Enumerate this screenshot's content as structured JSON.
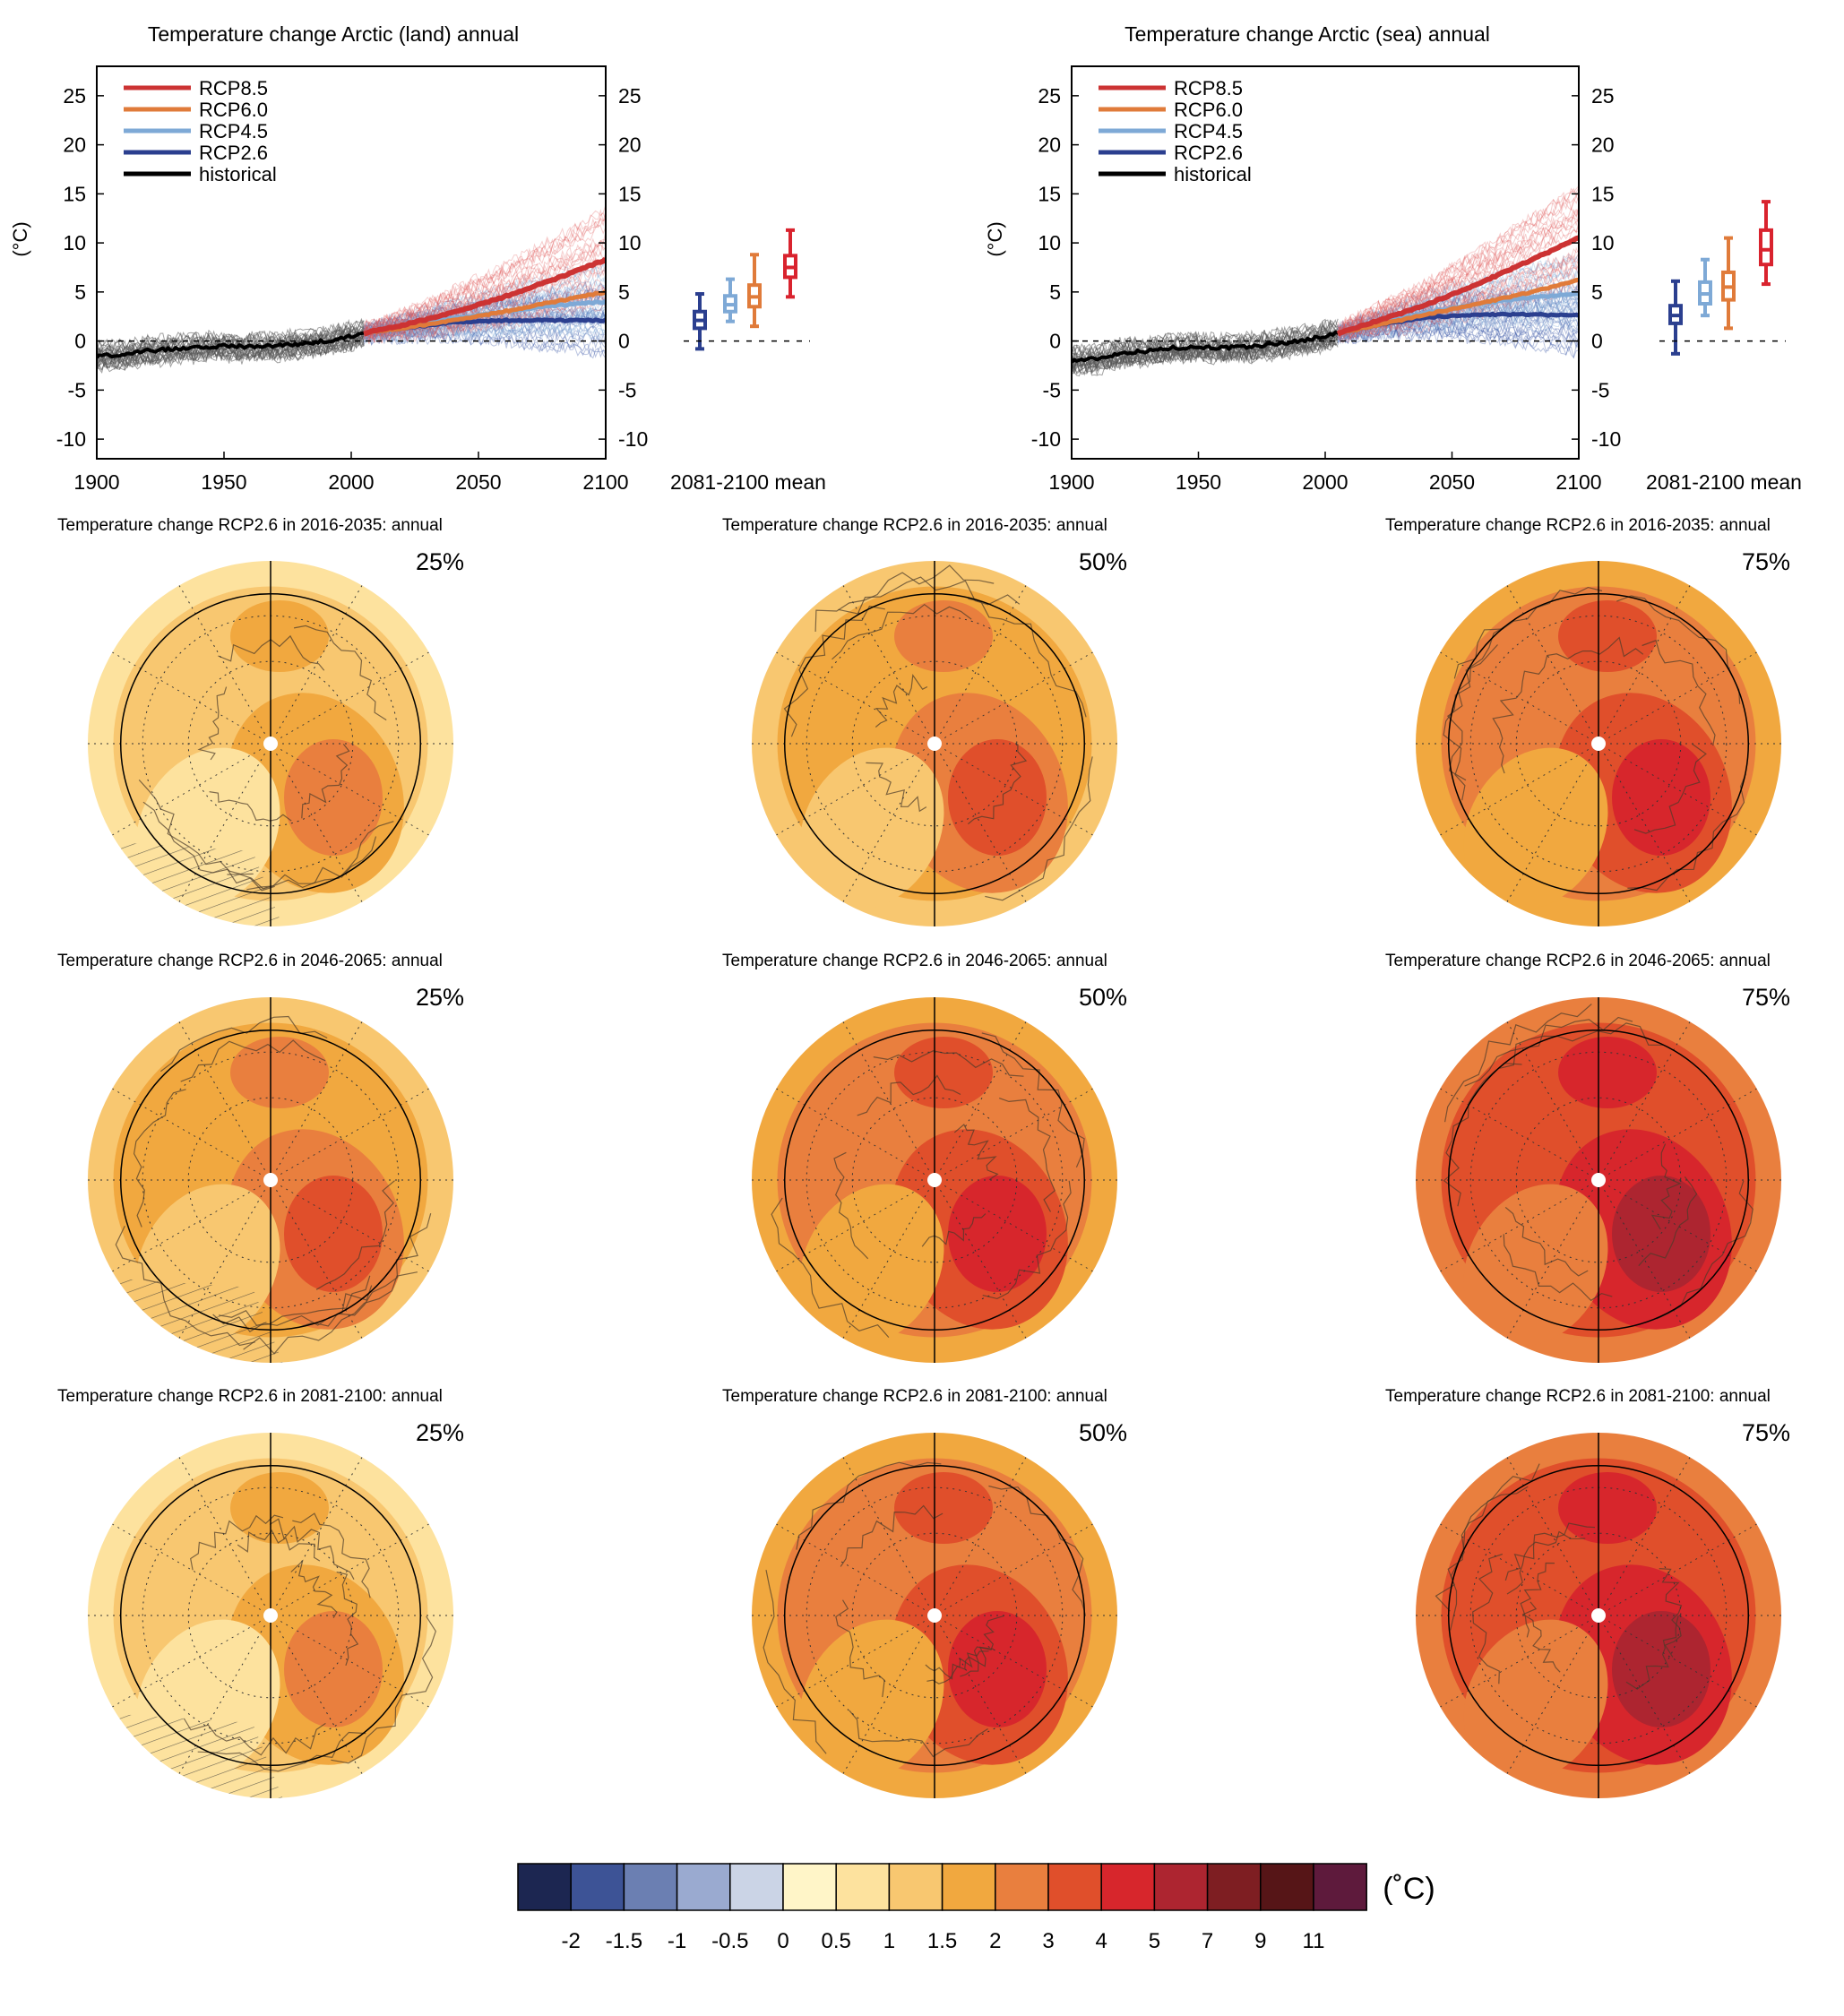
{
  "chart_data": [
    {
      "type": "line",
      "title": "Temperature change Arctic (land) annual",
      "ylabel": "(°C)",
      "xlim": [
        1900,
        2100
      ],
      "ylim": [
        -12,
        28
      ],
      "x_ticks": [
        1900,
        1950,
        2000,
        2050,
        2100
      ],
      "y_ticks": [
        -10,
        -5,
        0,
        5,
        10,
        15,
        20,
        25
      ],
      "legend": [
        "RCP8.5",
        "RCP6.0",
        "RCP4.5",
        "RCP2.6",
        "historical"
      ],
      "legend_position": "top-left",
      "series": [
        {
          "name": "historical",
          "color": "#000000",
          "x": [
            1900,
            1910,
            1920,
            1930,
            1940,
            1950,
            1960,
            1970,
            1980,
            1990,
            2000,
            2005
          ],
          "y": [
            -1.5,
            -1.4,
            -1.0,
            -0.8,
            -0.6,
            -0.5,
            -0.6,
            -0.5,
            -0.3,
            0.0,
            0.5,
            0.8
          ]
        },
        {
          "name": "RCP2.6",
          "color": "#2b3f8f",
          "x": [
            2005,
            2020,
            2040,
            2060,
            2080,
            2100
          ],
          "y": [
            0.8,
            1.3,
            1.9,
            2.1,
            2.1,
            2.1
          ]
        },
        {
          "name": "RCP4.5",
          "color": "#7ea9d6",
          "x": [
            2005,
            2020,
            2040,
            2060,
            2080,
            2100
          ],
          "y": [
            0.8,
            1.4,
            2.3,
            3.0,
            3.6,
            4.0
          ]
        },
        {
          "name": "RCP6.0",
          "color": "#e07b3a",
          "x": [
            2005,
            2020,
            2040,
            2060,
            2080,
            2100
          ],
          "y": [
            0.8,
            1.3,
            2.1,
            3.0,
            4.0,
            5.0
          ]
        },
        {
          "name": "RCP8.5",
          "color": "#cc3333",
          "x": [
            2005,
            2020,
            2040,
            2060,
            2080,
            2100
          ],
          "y": [
            0.8,
            1.6,
            2.9,
            4.5,
            6.3,
            8.3
          ]
        }
      ],
      "boxplot": {
        "label": "2081-2100 mean",
        "boxes": [
          {
            "name": "RCP2.6",
            "color": "#2b3f8f",
            "whisker_low": -0.8,
            "q1": 1.3,
            "median": 2.1,
            "q3": 3.0,
            "whisker_high": 4.8
          },
          {
            "name": "RCP4.5",
            "color": "#7ea9d6",
            "whisker_low": 2.0,
            "q1": 3.0,
            "median": 3.7,
            "q3": 4.6,
            "whisker_high": 6.3
          },
          {
            "name": "RCP6.0",
            "color": "#e07b3a",
            "whisker_low": 1.5,
            "q1": 3.5,
            "median": 4.5,
            "q3": 5.7,
            "whisker_high": 8.8
          },
          {
            "name": "RCP8.5",
            "color": "#d9232e",
            "whisker_low": 4.5,
            "q1": 6.5,
            "median": 7.5,
            "q3": 8.7,
            "whisker_high": 11.3
          }
        ]
      }
    },
    {
      "type": "line",
      "title": "Temperature change Arctic (sea) annual",
      "ylabel": "(°C)",
      "xlim": [
        1900,
        2100
      ],
      "ylim": [
        -12,
        28
      ],
      "x_ticks": [
        1900,
        1950,
        2000,
        2050,
        2100
      ],
      "y_ticks": [
        -10,
        -5,
        0,
        5,
        10,
        15,
        20,
        25
      ],
      "legend": [
        "RCP8.5",
        "RCP6.0",
        "RCP4.5",
        "RCP2.6",
        "historical"
      ],
      "legend_position": "top-left",
      "series": [
        {
          "name": "historical",
          "color": "#000000",
          "x": [
            1900,
            1910,
            1920,
            1930,
            1940,
            1950,
            1960,
            1970,
            1980,
            1990,
            2000,
            2005
          ],
          "y": [
            -2.0,
            -1.8,
            -1.2,
            -1.0,
            -0.7,
            -0.6,
            -0.7,
            -0.6,
            -0.3,
            0.0,
            0.5,
            0.8
          ]
        },
        {
          "name": "RCP2.6",
          "color": "#2b3f8f",
          "x": [
            2005,
            2020,
            2040,
            2060,
            2080,
            2100
          ],
          "y": [
            0.8,
            1.6,
            2.4,
            2.7,
            2.7,
            2.6
          ]
        },
        {
          "name": "RCP4.5",
          "color": "#7ea9d6",
          "x": [
            2005,
            2020,
            2040,
            2060,
            2080,
            2100
          ],
          "y": [
            0.8,
            1.7,
            2.9,
            3.8,
            4.4,
            4.8
          ]
        },
        {
          "name": "RCP6.0",
          "color": "#e07b3a",
          "x": [
            2005,
            2020,
            2040,
            2060,
            2080,
            2100
          ],
          "y": [
            0.8,
            1.6,
            2.7,
            3.8,
            4.9,
            6.2
          ]
        },
        {
          "name": "RCP8.5",
          "color": "#cc3333",
          "x": [
            2005,
            2020,
            2040,
            2060,
            2080,
            2100
          ],
          "y": [
            0.8,
            2.0,
            3.7,
            5.8,
            8.1,
            10.5
          ]
        }
      ],
      "boxplot": {
        "label": "2081-2100 mean",
        "boxes": [
          {
            "name": "RCP2.6",
            "color": "#2b3f8f",
            "whisker_low": -1.3,
            "q1": 1.8,
            "median": 2.6,
            "q3": 3.6,
            "whisker_high": 6.1
          },
          {
            "name": "RCP4.5",
            "color": "#7ea9d6",
            "whisker_low": 2.6,
            "q1": 3.8,
            "median": 4.8,
            "q3": 6.0,
            "whisker_high": 8.3
          },
          {
            "name": "RCP6.0",
            "color": "#e07b3a",
            "whisker_low": 1.3,
            "q1": 4.2,
            "median": 5.5,
            "q3": 7.0,
            "whisker_high": 10.5
          },
          {
            "name": "RCP8.5",
            "color": "#d9232e",
            "whisker_low": 5.8,
            "q1": 7.8,
            "median": 9.3,
            "q3": 11.3,
            "whisker_high": 14.2
          }
        ]
      }
    },
    {
      "type": "heatmap",
      "maps": [
        {
          "title": "Temperature change RCP2.6 in 2016-2035: annual",
          "percentile": "25%",
          "base_value": 1.0
        },
        {
          "title": "Temperature change RCP2.6 in 2016-2035: annual",
          "percentile": "50%",
          "base_value": 1.5
        },
        {
          "title": "Temperature change RCP2.6 in 2016-2035: annual",
          "percentile": "75%",
          "base_value": 2.0
        },
        {
          "title": "Temperature change RCP2.6 in 2046-2065: annual",
          "percentile": "25%",
          "base_value": 1.5
        },
        {
          "title": "Temperature change RCP2.6 in 2046-2065: annual",
          "percentile": "50%",
          "base_value": 2.0
        },
        {
          "title": "Temperature change RCP2.6 in 2046-2065: annual",
          "percentile": "75%",
          "base_value": 3.0
        },
        {
          "title": "Temperature change RCP2.6 in 2081-2100: annual",
          "percentile": "25%",
          "base_value": 1.0
        },
        {
          "title": "Temperature change RCP2.6 in 2081-2100: annual",
          "percentile": "50%",
          "base_value": 2.0
        },
        {
          "title": "Temperature change RCP2.6 in 2081-2100: annual",
          "percentile": "75%",
          "base_value": 3.0
        }
      ],
      "colorbar": {
        "unit": "(˚C)",
        "labels": [
          "-2",
          "-1.5",
          "-1",
          "-0.5",
          "0",
          "0.5",
          "1",
          "1.5",
          "2",
          "3",
          "4",
          "5",
          "7",
          "9",
          "11"
        ],
        "colors": [
          "#1c2651",
          "#3d5396",
          "#6b7fb2",
          "#9aaad0",
          "#cbd4e6",
          "#fff5c8",
          "#fde29e",
          "#f8c770",
          "#f1a83f",
          "#e97f3e",
          "#e04f2b",
          "#d7262c",
          "#ad2530",
          "#7e1e22",
          "#561517",
          "#5e1a3c"
        ]
      }
    }
  ]
}
